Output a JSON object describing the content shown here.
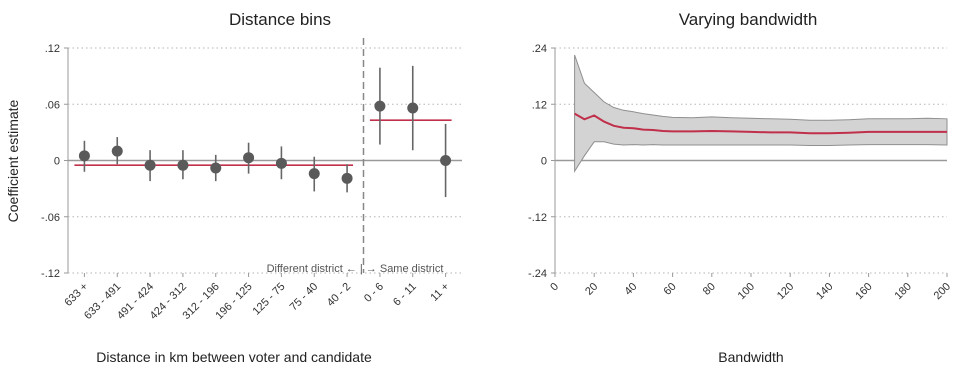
{
  "chart_data": [
    {
      "type": "scatter",
      "title": "Distance bins",
      "xlabel": "Distance in km between voter and candidate",
      "ylabel": "Coefficient estimate",
      "ylim": [
        -0.12,
        0.12
      ],
      "yticks": [
        0.12,
        0.06,
        0,
        -0.06,
        -0.12
      ],
      "ytick_labels": [
        ".12",
        ".06",
        "0",
        "-.06",
        "-.12"
      ],
      "grid": "horizontal dotted",
      "categories": [
        "633 +",
        "633 - 491",
        "491 - 424",
        "424 - 312",
        "312 - 196",
        "196 - 125",
        "125 - 75",
        "75 - 40",
        "40 - 2",
        "0 - 6",
        "6 - 11",
        "11 +"
      ],
      "values": [
        0.005,
        0.01,
        -0.005,
        -0.005,
        -0.008,
        0.003,
        -0.003,
        -0.014,
        -0.019,
        0.058,
        0.056,
        0.0
      ],
      "ci_low": [
        -0.012,
        -0.004,
        -0.022,
        -0.02,
        -0.022,
        -0.014,
        -0.02,
        -0.033,
        -0.034,
        0.017,
        0.011,
        -0.039
      ],
      "ci_high": [
        0.021,
        0.025,
        0.011,
        0.011,
        0.006,
        0.019,
        0.015,
        0.004,
        -0.004,
        0.099,
        0.101,
        0.039
      ],
      "group_means": [
        {
          "value": -0.005,
          "from": 0,
          "to": 8
        },
        {
          "value": 0.043,
          "from": 9,
          "to": 11
        }
      ],
      "divider_after_index": 8,
      "annotation": "Different district ← | → Same district",
      "colors": {
        "points": "#5a5a5a",
        "ci": "#666666",
        "mean_line": "#c0304b",
        "zero_line": "#999999",
        "divider": "#888888"
      }
    },
    {
      "type": "line",
      "title": "Varying bandwidth",
      "xlabel": "Bandwidth",
      "ylabel": "",
      "xlim": [
        0,
        200
      ],
      "ylim": [
        -0.24,
        0.24
      ],
      "xticks": [
        0,
        20,
        40,
        60,
        80,
        100,
        120,
        140,
        160,
        180,
        200
      ],
      "yticks": [
        0.24,
        0.12,
        0,
        -0.12,
        -0.24
      ],
      "ytick_labels": [
        ".24",
        ".12",
        "0",
        "-.12",
        "-.24"
      ],
      "grid": "horizontal dotted",
      "series": [
        {
          "x": [
            10,
            15,
            20,
            25,
            30,
            35,
            40,
            45,
            50,
            55,
            60,
            70,
            80,
            90,
            100,
            110,
            120,
            130,
            140,
            150,
            160,
            170,
            180,
            190,
            200
          ],
          "y": [
            0.1,
            0.088,
            0.096,
            0.083,
            0.074,
            0.07,
            0.069,
            0.066,
            0.065,
            0.063,
            0.062,
            0.062,
            0.063,
            0.062,
            0.061,
            0.06,
            0.06,
            0.058,
            0.058,
            0.059,
            0.061,
            0.061,
            0.061,
            0.061,
            0.061
          ],
          "ci_low": [
            -0.023,
            0.01,
            0.04,
            0.04,
            0.035,
            0.033,
            0.034,
            0.033,
            0.034,
            0.033,
            0.033,
            0.033,
            0.033,
            0.033,
            0.033,
            0.033,
            0.033,
            0.032,
            0.032,
            0.033,
            0.034,
            0.034,
            0.034,
            0.034,
            0.033
          ],
          "ci_high": [
            0.225,
            0.165,
            0.145,
            0.125,
            0.113,
            0.107,
            0.104,
            0.1,
            0.097,
            0.094,
            0.092,
            0.091,
            0.093,
            0.091,
            0.09,
            0.089,
            0.088,
            0.086,
            0.086,
            0.087,
            0.089,
            0.089,
            0.089,
            0.09,
            0.089
          ]
        }
      ],
      "colors": {
        "line": "#c0304b",
        "band_fill": "#d3d3d3",
        "band_edge": "#8f8f8f",
        "zero_line": "#999999"
      }
    }
  ]
}
